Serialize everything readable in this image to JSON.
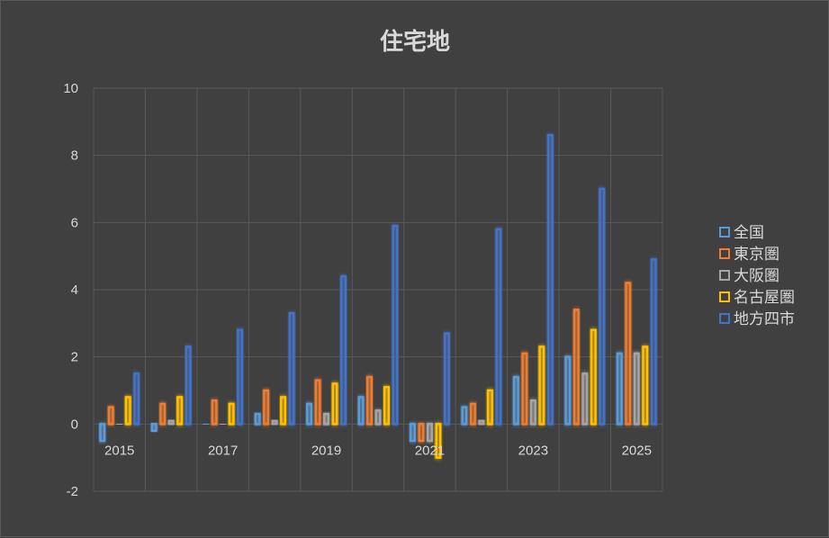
{
  "chart_data": {
    "type": "bar",
    "title": "住宅地",
    "categories": [
      "2015",
      "2016",
      "2017",
      "2018",
      "2019",
      "2020",
      "2021",
      "2022",
      "2023",
      "2024",
      "2025"
    ],
    "x_tick_labels": [
      "2015",
      "",
      "2017",
      "",
      "2019",
      "",
      "2021",
      "",
      "2023",
      "",
      "2025"
    ],
    "ylim": [
      -2,
      10
    ],
    "y_ticks": [
      "-2",
      "0",
      "2",
      "4",
      "6",
      "8",
      "10"
    ],
    "grid": true,
    "legend_position": "right",
    "series": [
      {
        "name": "全国",
        "color": "#5b9bd5",
        "values": [
          -0.5,
          -0.2,
          0.0,
          0.3,
          0.6,
          0.8,
          -0.5,
          0.5,
          1.4,
          2.0,
          2.1
        ]
      },
      {
        "name": "東京圏",
        "color": "#ed7d31",
        "values": [
          0.5,
          0.6,
          0.7,
          1.0,
          1.3,
          1.4,
          -0.5,
          0.6,
          2.1,
          3.4,
          4.2
        ]
      },
      {
        "name": "大阪圏",
        "color": "#a5a5a5",
        "values": [
          0.0,
          0.1,
          0.0,
          0.1,
          0.3,
          0.4,
          -0.5,
          0.1,
          0.7,
          1.5,
          2.1
        ]
      },
      {
        "name": "名古屋圏",
        "color": "#ffc000",
        "values": [
          0.8,
          0.8,
          0.6,
          0.8,
          1.2,
          1.1,
          -1.0,
          1.0,
          2.3,
          2.8,
          2.3
        ]
      },
      {
        "name": "地方四市",
        "color": "#4472c4",
        "values": [
          1.5,
          2.3,
          2.8,
          3.3,
          4.4,
          5.9,
          2.7,
          5.8,
          8.6,
          7.0,
          4.9
        ]
      }
    ]
  }
}
